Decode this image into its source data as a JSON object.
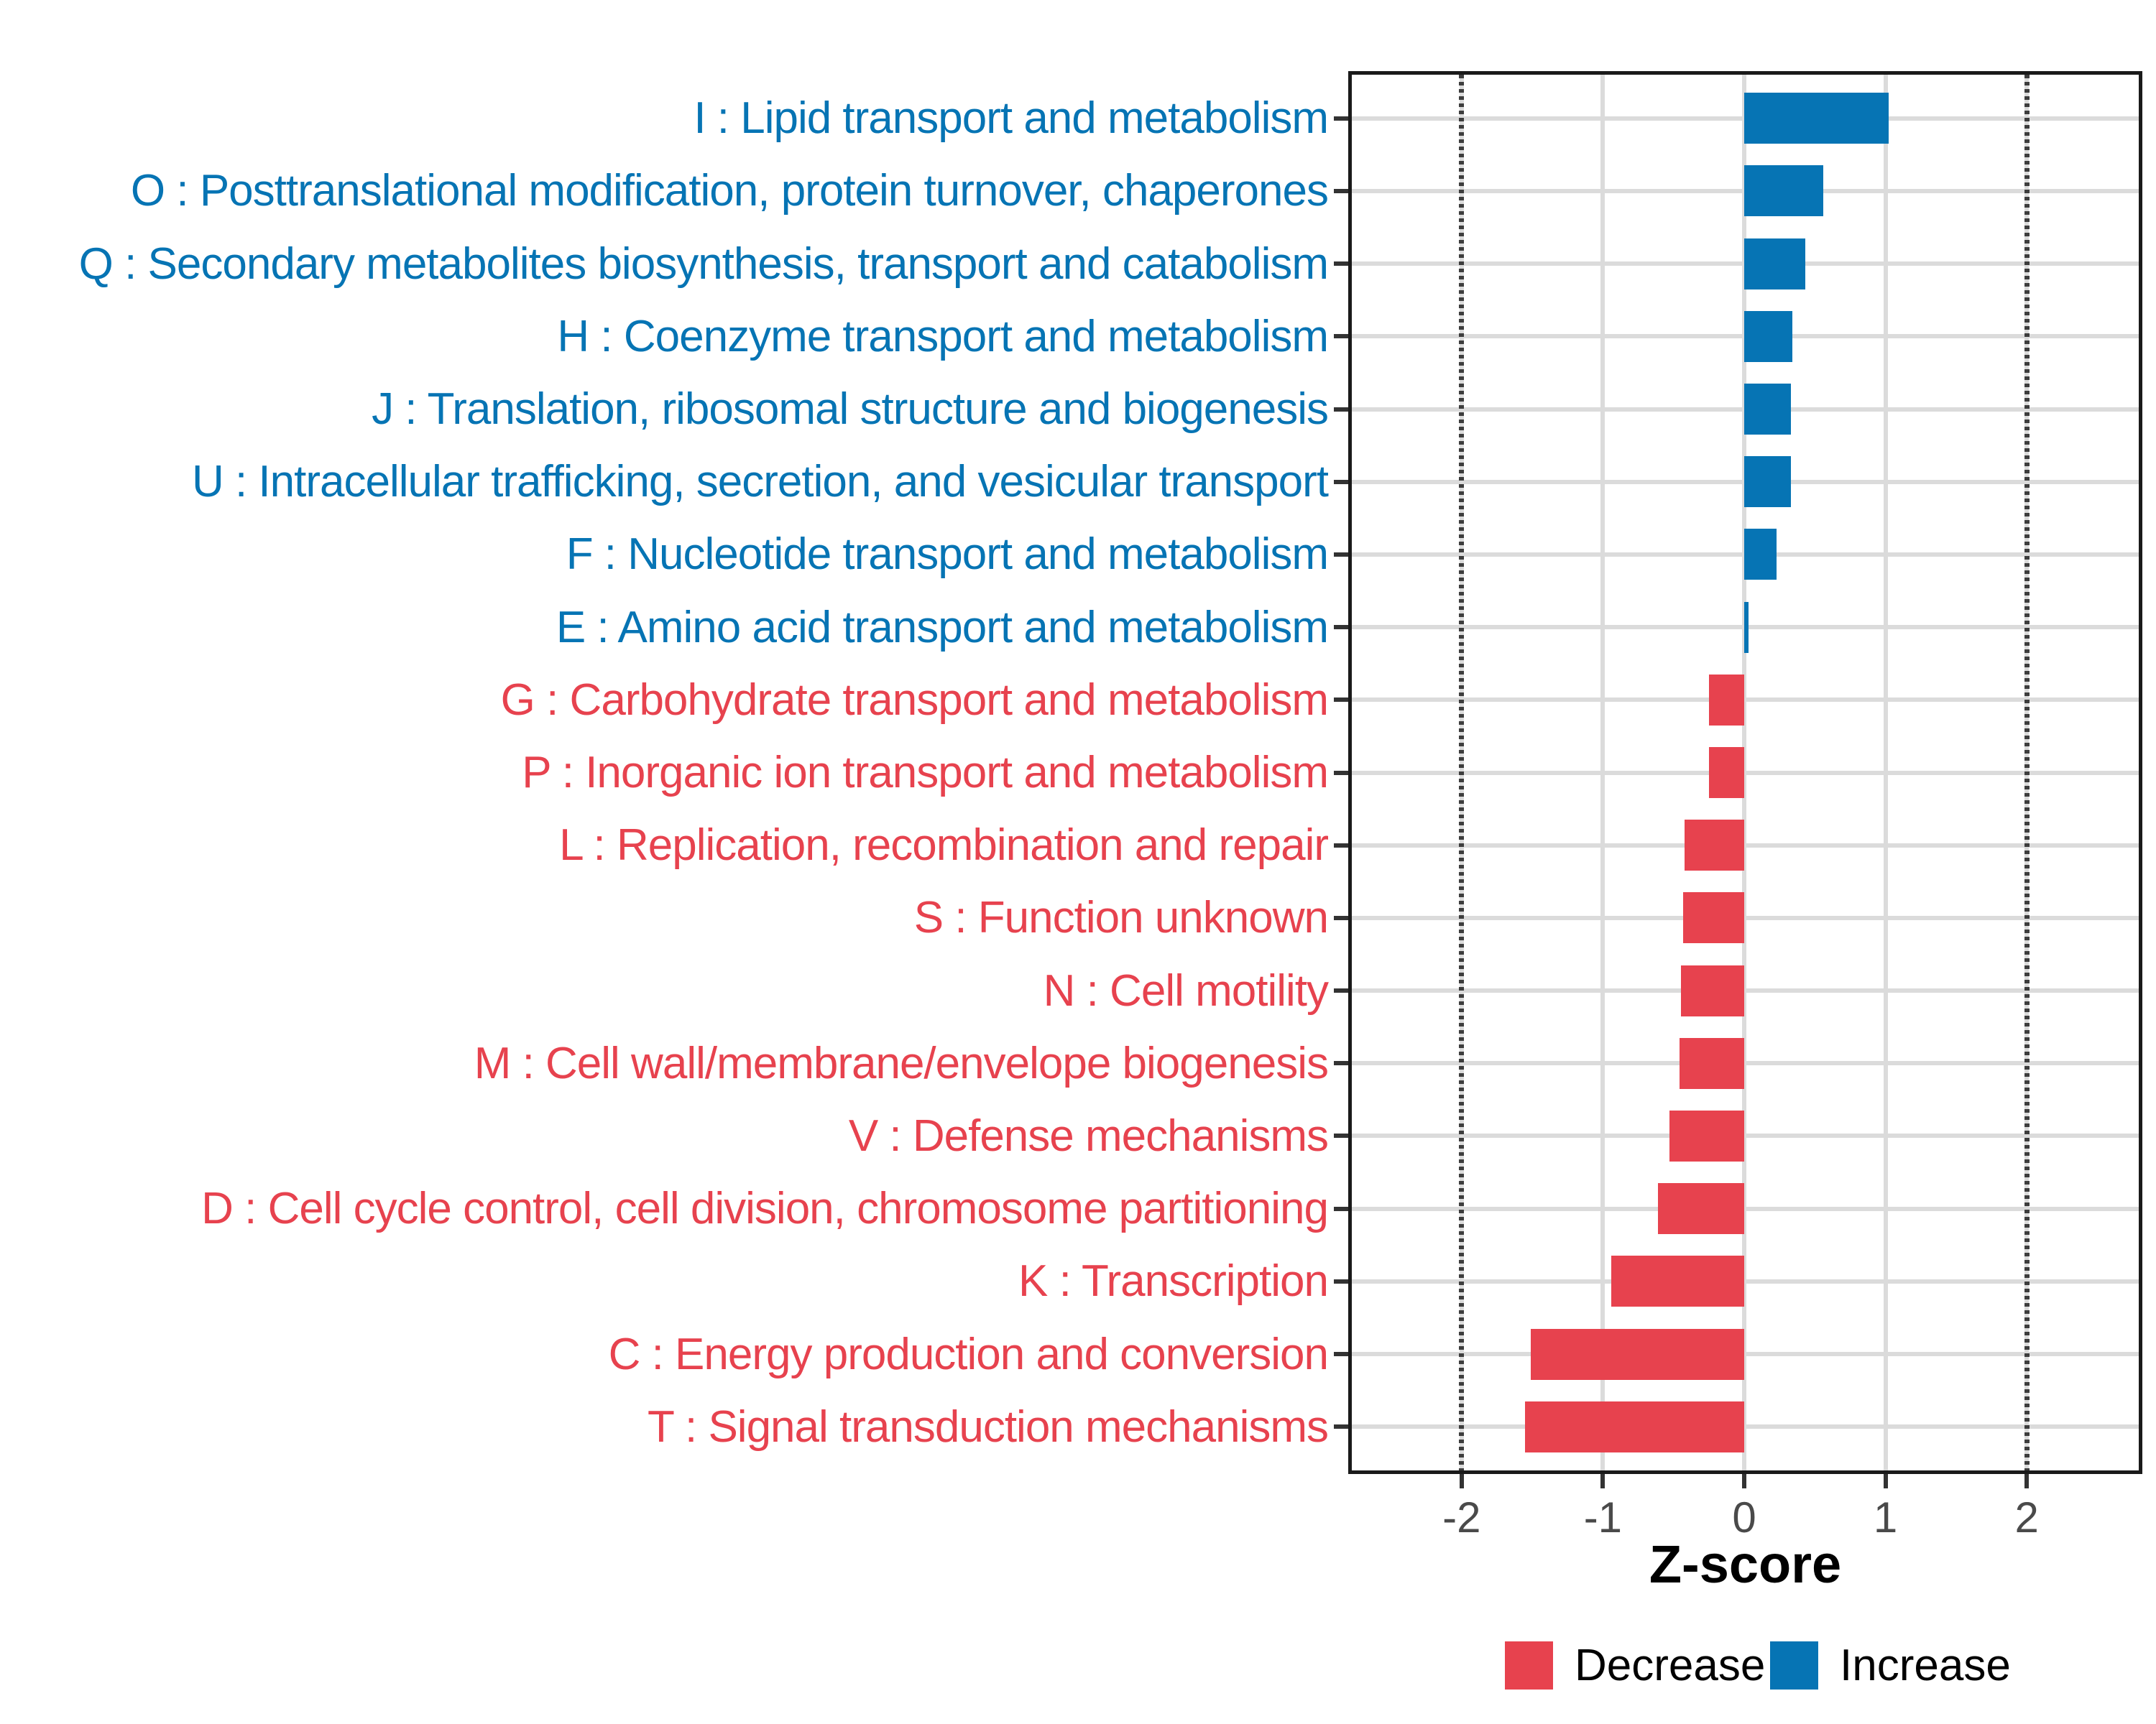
{
  "chart_data": {
    "type": "bar",
    "orientation": "horizontal",
    "title": "",
    "xlabel": "Z-score",
    "ylabel": "",
    "xlim": [
      -2.78,
      2.79
    ],
    "x_ticks": [
      -2,
      -1,
      0,
      1,
      2
    ],
    "x_tick_labels": [
      "-2",
      "-1",
      "0",
      "1",
      "2"
    ],
    "reference_lines": {
      "values": [
        -2,
        2
      ],
      "style": "dotted",
      "color": "#3d3d3d"
    },
    "grid": {
      "vertical_at_ticks": true,
      "horizontal_at_row_centers": true,
      "color": "#dbdbdb"
    },
    "series_colors": {
      "Decrease": "#e7424e",
      "Increase": "#0674b4"
    },
    "categories": [
      "I : Lipid transport and metabolism",
      "O : Posttranslational modification, protein turnover, chaperones",
      "Q : Secondary metabolites biosynthesis, transport and catabolism",
      "H : Coenzyme transport and metabolism",
      "J : Translation, ribosomal structure and biogenesis",
      "U : Intracellular trafficking, secretion, and vesicular transport",
      "F : Nucleotide transport and metabolism",
      "E : Amino acid transport and metabolism",
      "G : Carbohydrate transport and metabolism",
      "P : Inorganic ion transport and metabolism",
      "L : Replication, recombination and repair",
      "S : Function unknown",
      "N : Cell motility",
      "M : Cell wall/membrane/envelope biogenesis",
      "V : Defense mechanisms",
      "D : Cell cycle control, cell division, chromosome partitioning",
      "K : Transcription",
      "C : Energy production and conversion",
      "T : Signal transduction mechanisms"
    ],
    "values": [
      1.02,
      0.56,
      0.43,
      0.34,
      0.33,
      0.33,
      0.23,
      0.03,
      -0.25,
      -0.25,
      -0.42,
      -0.43,
      -0.45,
      -0.46,
      -0.53,
      -0.61,
      -0.94,
      -1.51,
      -1.55
    ],
    "groups": [
      "Increase",
      "Increase",
      "Increase",
      "Increase",
      "Increase",
      "Increase",
      "Increase",
      "Increase",
      "Decrease",
      "Decrease",
      "Decrease",
      "Decrease",
      "Decrease",
      "Decrease",
      "Decrease",
      "Decrease",
      "Decrease",
      "Decrease",
      "Decrease"
    ],
    "legend": {
      "position": "bottom-right",
      "items": [
        {
          "label": "Decrease",
          "color": "#e7424e"
        },
        {
          "label": "Increase",
          "color": "#0674b4"
        }
      ]
    }
  }
}
